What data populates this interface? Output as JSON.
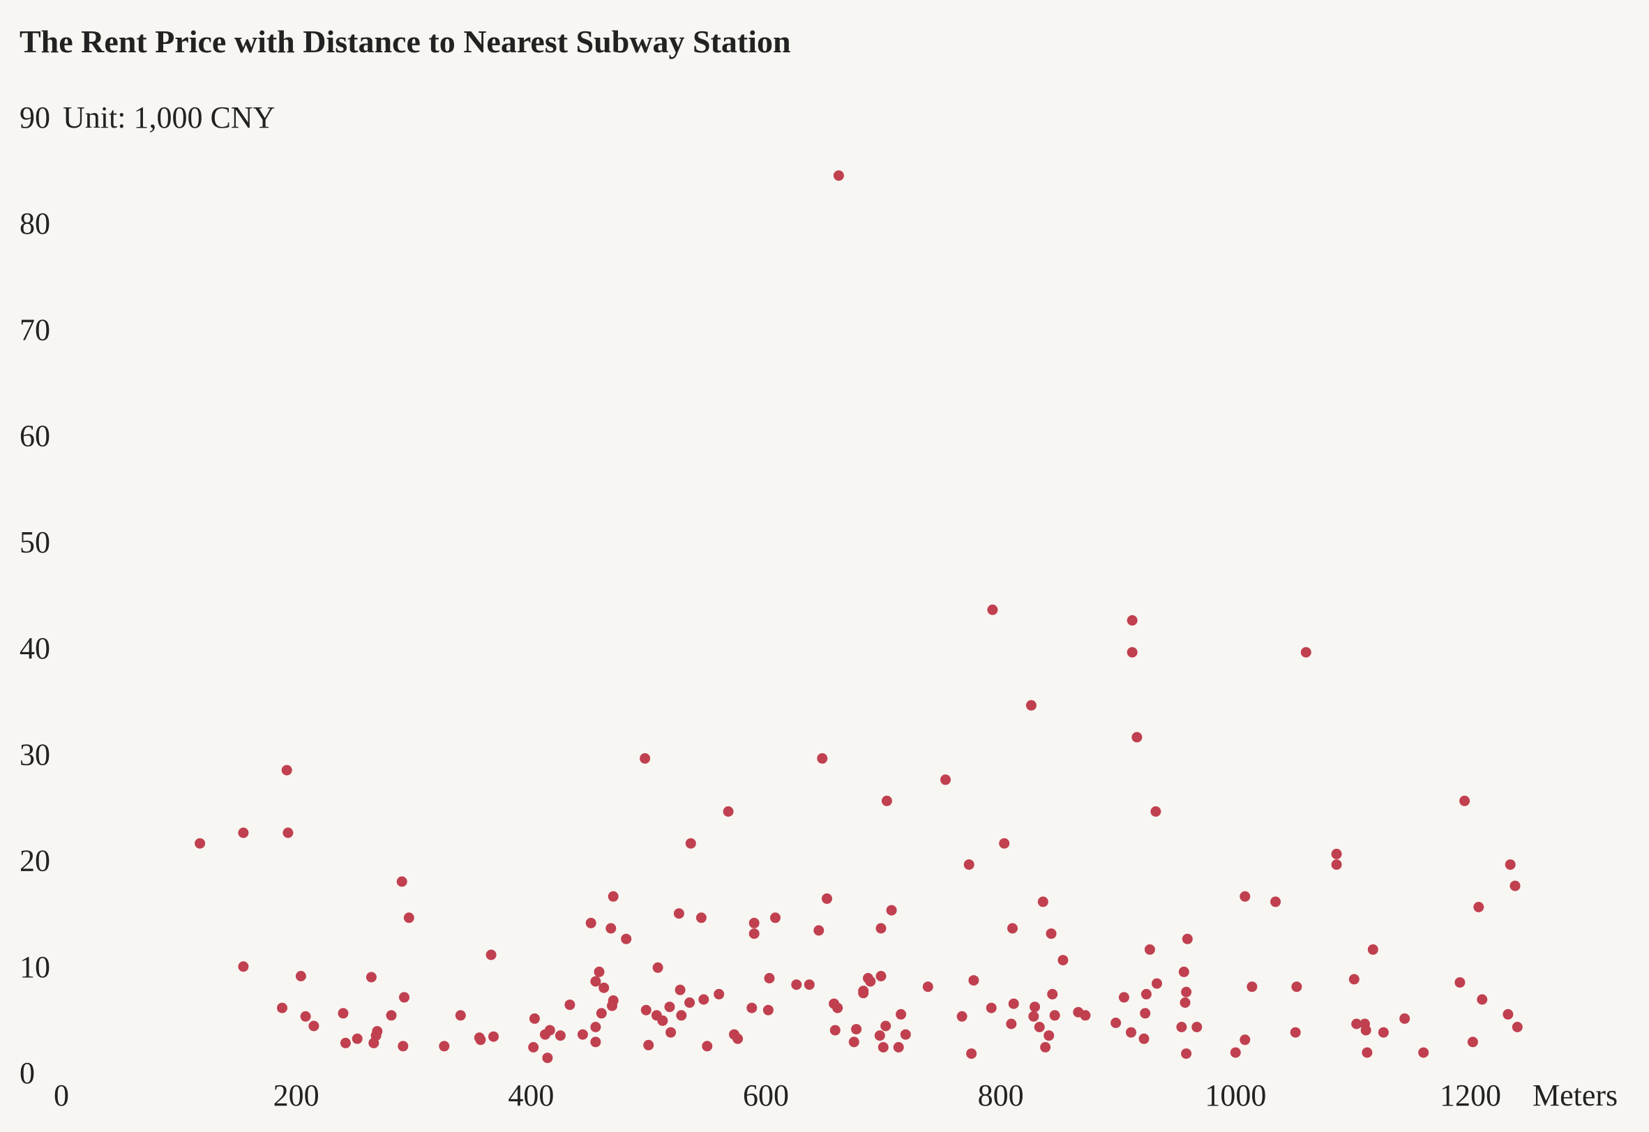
{
  "chart_data": {
    "type": "scatter",
    "title": "The Rent Price with Distance to Nearest Subway Station",
    "ylabel": "Unit: 1,000 CNY",
    "xlabel": "Meters",
    "xlim": [
      0,
      1200
    ],
    "ylim": [
      0,
      90
    ],
    "xticks": [
      "0",
      "200",
      "400",
      "600",
      "800",
      "1000",
      "1200"
    ],
    "yticks": [
      "0",
      "10",
      "20",
      "30",
      "40",
      "50",
      "60",
      "70",
      "80",
      "90"
    ],
    "grid": false,
    "point_color": "#c0404f",
    "points": [
      [
        118,
        21.6
      ],
      [
        155,
        22.6
      ],
      [
        155,
        10.0
      ],
      [
        188,
        6.1
      ],
      [
        192,
        28.5
      ],
      [
        193,
        22.6
      ],
      [
        204,
        9.1
      ],
      [
        208,
        5.3
      ],
      [
        215,
        4.4
      ],
      [
        240,
        5.6
      ],
      [
        242,
        2.8
      ],
      [
        252,
        3.2
      ],
      [
        264,
        9.0
      ],
      [
        266,
        2.8
      ],
      [
        268,
        3.5
      ],
      [
        269,
        3.9
      ],
      [
        281,
        5.4
      ],
      [
        290,
        18.0
      ],
      [
        291,
        2.5
      ],
      [
        292,
        7.1
      ],
      [
        296,
        14.6
      ],
      [
        326,
        2.5
      ],
      [
        340,
        5.4
      ],
      [
        356,
        3.3
      ],
      [
        357,
        3.1
      ],
      [
        366,
        11.1
      ],
      [
        368,
        3.4
      ],
      [
        402,
        2.4
      ],
      [
        403,
        5.1
      ],
      [
        412,
        3.6
      ],
      [
        414,
        1.4
      ],
      [
        416,
        4.0
      ],
      [
        425,
        3.5
      ],
      [
        433,
        6.4
      ],
      [
        444,
        3.6
      ],
      [
        451,
        14.1
      ],
      [
        455,
        8.6
      ],
      [
        455,
        2.9
      ],
      [
        455,
        4.3
      ],
      [
        458,
        9.5
      ],
      [
        460,
        5.6
      ],
      [
        462,
        8.0
      ],
      [
        468,
        13.6
      ],
      [
        469,
        6.3
      ],
      [
        470,
        16.6
      ],
      [
        470,
        6.8
      ],
      [
        481,
        12.6
      ],
      [
        497,
        29.6
      ],
      [
        498,
        5.9
      ],
      [
        500,
        2.6
      ],
      [
        507,
        5.4
      ],
      [
        508,
        9.9
      ],
      [
        512,
        4.9
      ],
      [
        518,
        6.2
      ],
      [
        519,
        3.8
      ],
      [
        526,
        15.0
      ],
      [
        527,
        7.8
      ],
      [
        528,
        5.4
      ],
      [
        535,
        6.6
      ],
      [
        536,
        21.6
      ],
      [
        545,
        14.6
      ],
      [
        547,
        6.9
      ],
      [
        550,
        2.5
      ],
      [
        560,
        7.4
      ],
      [
        568,
        24.6
      ],
      [
        573,
        3.6
      ],
      [
        576,
        3.2
      ],
      [
        588,
        6.1
      ],
      [
        590,
        14.1
      ],
      [
        590,
        13.1
      ],
      [
        602,
        5.9
      ],
      [
        603,
        8.9
      ],
      [
        608,
        14.6
      ],
      [
        626,
        8.3
      ],
      [
        637,
        8.3
      ],
      [
        645,
        13.4
      ],
      [
        648,
        29.6
      ],
      [
        652,
        16.4
      ],
      [
        658,
        6.5
      ],
      [
        659,
        4.0
      ],
      [
        661,
        6.1
      ],
      [
        662,
        84.5
      ],
      [
        675,
        2.9
      ],
      [
        677,
        4.1
      ],
      [
        683,
        7.5
      ],
      [
        683,
        7.7
      ],
      [
        687,
        8.9
      ],
      [
        689,
        8.6
      ],
      [
        697,
        3.5
      ],
      [
        698,
        13.6
      ],
      [
        698,
        9.1
      ],
      [
        700,
        2.4
      ],
      [
        702,
        4.4
      ],
      [
        703,
        25.6
      ],
      [
        707,
        15.3
      ],
      [
        713,
        2.4
      ],
      [
        715,
        5.5
      ],
      [
        719,
        3.6
      ],
      [
        738,
        8.1
      ],
      [
        753,
        27.6
      ],
      [
        767,
        5.3
      ],
      [
        773,
        19.6
      ],
      [
        775,
        1.8
      ],
      [
        777,
        8.7
      ],
      [
        792,
        6.1
      ],
      [
        793,
        43.6
      ],
      [
        803,
        21.6
      ],
      [
        809,
        4.6
      ],
      [
        810,
        13.6
      ],
      [
        811,
        6.5
      ],
      [
        826,
        34.6
      ],
      [
        828,
        5.3
      ],
      [
        829,
        6.2
      ],
      [
        833,
        4.3
      ],
      [
        836,
        16.1
      ],
      [
        838,
        2.4
      ],
      [
        841,
        3.5
      ],
      [
        843,
        13.1
      ],
      [
        844,
        7.4
      ],
      [
        846,
        5.4
      ],
      [
        853,
        10.6
      ],
      [
        866,
        5.7
      ],
      [
        872,
        5.4
      ],
      [
        898,
        4.7
      ],
      [
        905,
        7.1
      ],
      [
        911,
        3.8
      ],
      [
        912,
        42.6
      ],
      [
        912,
        39.6
      ],
      [
        916,
        31.6
      ],
      [
        922,
        3.2
      ],
      [
        923,
        5.6
      ],
      [
        924,
        7.4
      ],
      [
        927,
        11.6
      ],
      [
        932,
        24.6
      ],
      [
        933,
        8.4
      ],
      [
        954,
        4.3
      ],
      [
        956,
        9.5
      ],
      [
        957,
        6.6
      ],
      [
        958,
        7.6
      ],
      [
        958,
        1.8
      ],
      [
        959,
        12.6
      ],
      [
        967,
        4.3
      ],
      [
        1000,
        1.9
      ],
      [
        1008,
        3.1
      ],
      [
        1008,
        16.6
      ],
      [
        1014,
        8.1
      ],
      [
        1034,
        16.1
      ],
      [
        1051,
        3.8
      ],
      [
        1052,
        8.1
      ],
      [
        1060,
        39.6
      ],
      [
        1086,
        20.6
      ],
      [
        1086,
        19.6
      ],
      [
        1101,
        8.8
      ],
      [
        1103,
        4.6
      ],
      [
        1110,
        4.6
      ],
      [
        1111,
        4.0
      ],
      [
        1112,
        1.9
      ],
      [
        1117,
        11.6
      ],
      [
        1126,
        3.8
      ],
      [
        1144,
        5.1
      ],
      [
        1160,
        1.9
      ],
      [
        1191,
        8.5
      ],
      [
        1195,
        25.6
      ],
      [
        1202,
        2.9
      ],
      [
        1207,
        15.6
      ],
      [
        1210,
        6.9
      ],
      [
        1232,
        5.5
      ],
      [
        1234,
        19.6
      ],
      [
        1238,
        17.6
      ],
      [
        1240,
        4.3
      ]
    ]
  }
}
